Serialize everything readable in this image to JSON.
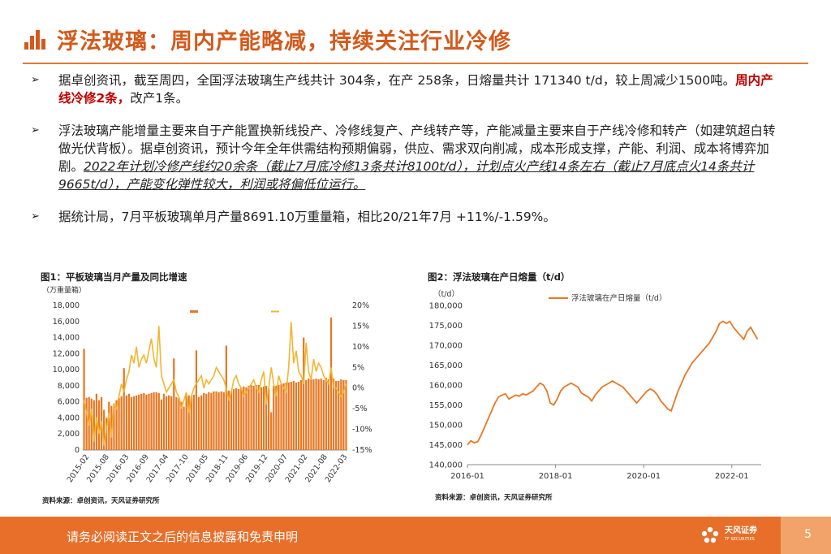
{
  "header": {
    "title": "浮法玻璃：周内产能略减，持续关注行业冷修"
  },
  "bullets": [
    {
      "mark": "➢",
      "parts": [
        {
          "text": "据卓创资讯，截至周四，全国浮法玻璃生产线共计 304条，在产 258条，日熔量共计 171340 t/d，较上周减少1500吨。",
          "style": "normal"
        },
        {
          "text": "周内产线冷修2条，",
          "style": "highlight"
        },
        {
          "text": "改产1条。",
          "style": "normal"
        }
      ]
    },
    {
      "mark": "➢",
      "parts": [
        {
          "text": "浮法玻璃产能增量主要来自于产能置换新线投产、冷修线复产、产线转产等，产能减量主要来自于产线冷修和转产（如建筑超白转做光伏背板）。据卓创资讯，预计今年全年供需结构预期偏弱，供应、需求双向削减，成本形成支撑，产能、利润、成本将博弈加剧。",
          "style": "normal"
        },
        {
          "text": "2022年计划冷修产线约20余条（截止7月底冷修13条共计8100t/d），计划点火产线14条左右（截止7月底点火14条共计9665t/d），产能变化弹性较大，利润或将偏低位运行。",
          "style": "italic"
        }
      ]
    },
    {
      "mark": "➢",
      "parts": [
        {
          "text": "据统计局，7月平板玻璃单月产量8691.10万重量箱，相比20/21年7月 +11%/-1.59%。",
          "style": "normal"
        }
      ]
    }
  ],
  "figure1": {
    "caption": "图1：平板玻璃当月产量及同比增速",
    "unit": "（万重量箱）",
    "legend": [
      "",
      ""
    ],
    "source": "资料来源：卓创资讯，天风证券研究所",
    "chart_data": {
      "type": "bar",
      "y_left_ticks": [
        "18,000",
        "16,000",
        "14,000",
        "12,000",
        "10,000",
        "8,000",
        "6,000",
        "4,000",
        "2,000",
        "0"
      ],
      "y_right_ticks": [
        "20%",
        "15%",
        "10%",
        "5%",
        "0%",
        "-5%",
        "-10%",
        "-15%"
      ],
      "ylim_left": [
        0,
        18000
      ],
      "ylim_right": [
        -15,
        20
      ],
      "x_ticks": [
        "2015-02",
        "2015-08",
        "2016-03",
        "2016-09",
        "2017-04",
        "2017-10",
        "2018-05",
        "2018-11",
        "2019-06",
        "2019-12",
        "2020-07",
        "2021-02",
        "2021-08",
        "2022-03"
      ],
      "bar_color": "#e87722",
      "line_color": "#f2b632",
      "series": [
        {
          "name": "",
          "type": "bar",
          "values": [
            12600,
            6500,
            6600,
            6400,
            6200,
            7000,
            6200,
            6600,
            5000,
            4000,
            6000,
            5500,
            5800,
            6200,
            6500,
            6700,
            10200,
            6800,
            7000,
            6600,
            6700,
            6800,
            6900,
            7000,
            7100,
            6900,
            7000,
            7100,
            7200,
            7200,
            7100,
            6300,
            7000,
            6700,
            6800,
            6700,
            11400,
            6600,
            6500,
            6000,
            5400,
            6900,
            6800,
            6700,
            6900,
            12400,
            6600,
            6800,
            7100,
            7000,
            7200,
            7100,
            7300,
            7300,
            7200,
            7300,
            7200,
            13000,
            7400,
            7300,
            7600,
            7700,
            7600,
            7800,
            7900,
            7800,
            8000,
            8100,
            8000,
            8100,
            8100,
            7800,
            7900,
            8000,
            7700,
            4700,
            8000,
            8000,
            8100,
            8200,
            8300,
            8400,
            8400,
            8500,
            8600,
            8400,
            8500,
            8700,
            14000,
            8700,
            8900,
            8800,
            8800,
            8900,
            8800,
            8900,
            8700,
            9000,
            8800,
            16500,
            8900,
            8600,
            8600,
            8800,
            8700,
            8700
          ]
        },
        {
          "name": "",
          "type": "line",
          "axis": "right",
          "values": [
            -3,
            -6,
            -9,
            -5,
            -13,
            -7,
            -11,
            -8,
            -14,
            -10,
            -6,
            -12,
            -4,
            -5,
            -2,
            1,
            -1,
            2,
            4,
            8,
            6,
            10,
            5,
            7,
            8,
            6,
            9,
            12,
            7,
            5,
            15,
            3,
            1,
            -1,
            0,
            1,
            2,
            -1,
            -2,
            -5,
            -3,
            -1,
            -6,
            -2,
            0,
            1,
            2,
            3,
            0,
            2,
            1,
            2,
            3,
            5,
            4,
            3,
            2,
            0,
            -3,
            -1,
            2,
            3,
            1,
            0,
            -2,
            -1,
            0,
            1,
            2,
            0,
            -1,
            2,
            4,
            -4,
            0,
            5,
            1,
            -2,
            3,
            1,
            0,
            -1,
            5,
            16,
            6,
            9,
            4,
            3,
            1,
            11,
            4,
            2,
            7,
            4,
            6,
            5,
            3,
            2,
            1,
            5,
            0,
            0,
            -1,
            -2,
            -1,
            1
          ]
        }
      ]
    }
  },
  "figure2": {
    "caption": "图2：浮法玻璃在产日熔量（t/d）",
    "unit": "（t/d）",
    "legend": "浮法玻璃在产日熔量（t/d）",
    "source": "资料来源：卓创资讯，天风证券研究所",
    "chart_data": {
      "type": "line",
      "ylim": [
        140000,
        180000
      ],
      "y_ticks": [
        "180,000",
        "175,000",
        "170,000",
        "165,000",
        "160,000",
        "155,000",
        "150,000",
        "145,000",
        "140,000"
      ],
      "x_ticks": [
        "2016-01",
        "2018-01",
        "2020-01",
        "2022-01"
      ],
      "line_color": "#e87722",
      "series": [
        {
          "name": "浮法玻璃在产日熔量（t/d）",
          "x_start": "2016-01",
          "x_step": "month",
          "values": [
            145000,
            146000,
            145500,
            145800,
            147500,
            149500,
            151500,
            153500,
            155500,
            157000,
            157500,
            157800,
            156500,
            157000,
            157500,
            157200,
            157800,
            157500,
            158000,
            158500,
            159500,
            160500,
            160000,
            158500,
            155500,
            155000,
            156500,
            158500,
            159500,
            160000,
            160500,
            160000,
            159500,
            158000,
            157500,
            157000,
            156000,
            157500,
            158500,
            159500,
            160000,
            160500,
            161000,
            160500,
            160000,
            159500,
            158500,
            157500,
            156500,
            155500,
            156500,
            157500,
            158500,
            159000,
            158500,
            157500,
            156000,
            155000,
            154000,
            153500,
            156000,
            158500,
            160500,
            162500,
            164000,
            165500,
            166500,
            167500,
            168500,
            169500,
            170500,
            172000,
            173500,
            175500,
            176000,
            175500,
            176000,
            174500,
            173500,
            172500,
            171500,
            173500,
            174500,
            173000,
            171500
          ]
        }
      ]
    }
  },
  "footer": {
    "disclaimer": "请务必阅读正文之后的信息披露和免责申明",
    "logo_cn": "天风证券",
    "logo_en": "TF SECURITIES",
    "page": "5"
  },
  "colors": {
    "accent": "#e76f2a",
    "title": "#d35a1c",
    "highlight": "#c00000"
  }
}
